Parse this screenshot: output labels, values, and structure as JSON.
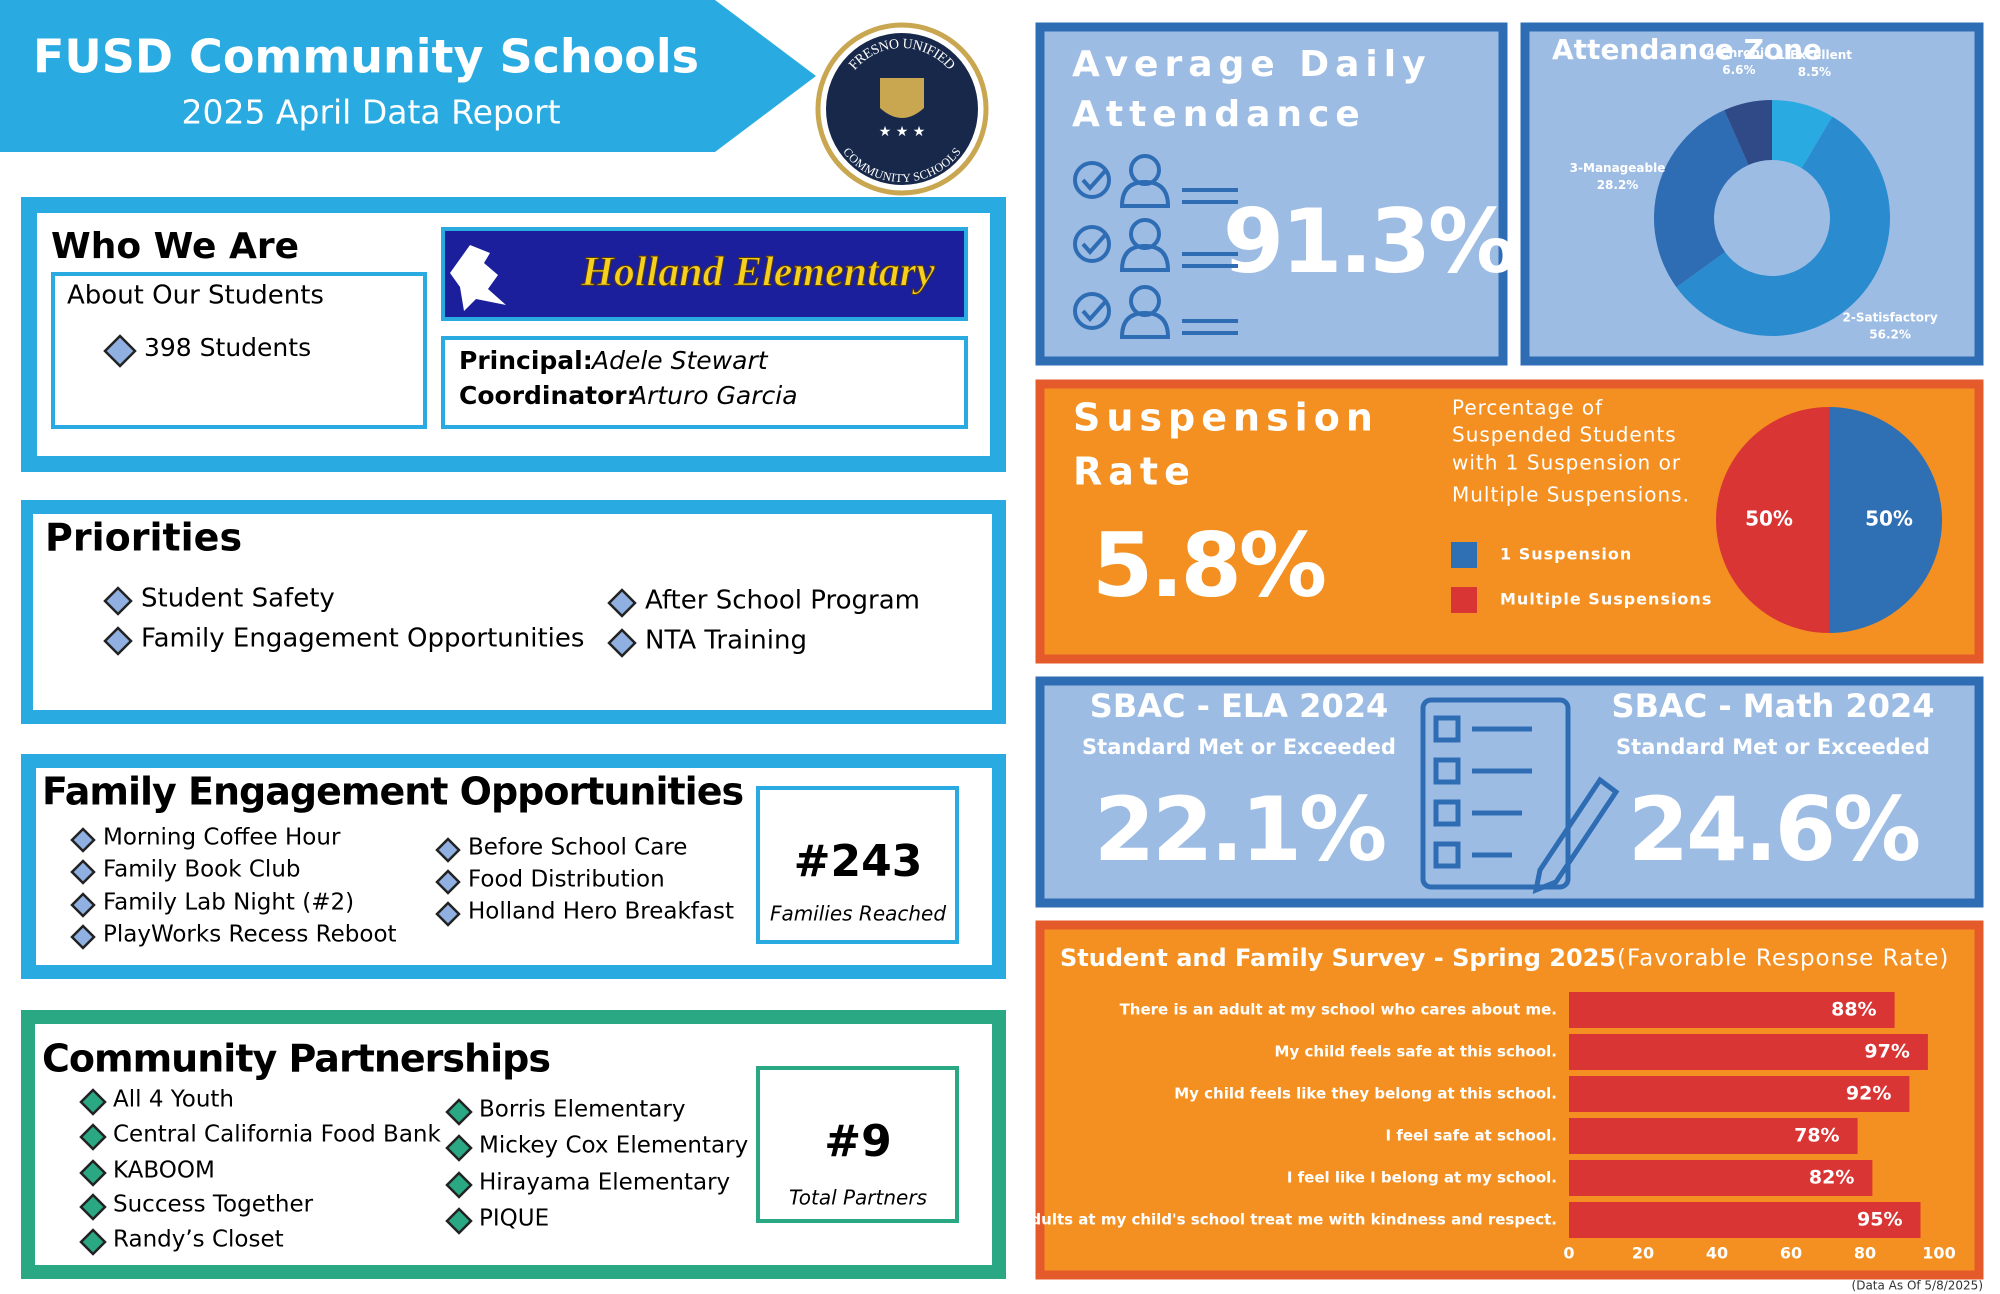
{
  "header": {
    "title": "FUSD Community Schools",
    "subtitle": "2025 April Data Report",
    "logo_top": "FRESNO UNIFIED",
    "logo_bottom": "COMMUNITY SCHOOLS"
  },
  "who": {
    "title": "Who We Are",
    "about_title": "About Our Students",
    "students": "398 Students",
    "school": "Holland Elementary",
    "principal_label": "Principal:",
    "principal": "Adele Stewart",
    "coordinator_label": "Coordinator:",
    "coordinator": "Arturo Garcia"
  },
  "priorities": {
    "title": "Priorities",
    "items": [
      "Student Safety",
      "Family Engagement Opportunities",
      "After School Program",
      "NTA Training"
    ]
  },
  "family": {
    "title": "Family Engagement Opportunities",
    "items": [
      "Morning Coffee Hour",
      "Family Book Club",
      "Family Lab Night (#2)",
      "PlayWorks Recess Reboot",
      "Before School Care",
      "Food Distribution",
      "Holland Hero Breakfast"
    ],
    "count": "#243",
    "count_label": "Families Reached"
  },
  "partners": {
    "title": "Community Partnerships",
    "items": [
      "All 4 Youth",
      "Central California Food Bank",
      "KABOOM",
      "Success Together",
      "Randy’s Closet",
      "Borris Elementary",
      "Mickey Cox Elementary",
      "Hirayama Elementary",
      "PIQUE"
    ],
    "count": "#9",
    "count_label": "Total Partners"
  },
  "attendance": {
    "title_lines": [
      "Average Daily",
      "Attendance"
    ],
    "value": "91.3%"
  },
  "suspension": {
    "title_lines": [
      "Suspension",
      "Rate"
    ],
    "value": "5.8%",
    "description_lines": [
      "Percentage of",
      "Suspended Students",
      "with 1 Suspension or",
      "Multiple Suspensions."
    ]
  },
  "sbac": {
    "ela_title": "SBAC - ELA 2024",
    "ela_subtitle": "Standard Met or Exceeded",
    "ela_value": "22.1%",
    "math_title": "SBAC - Math 2024",
    "math_subtitle": "Standard Met or Exceeded",
    "math_value": "24.6%"
  },
  "footnote": "(Data As Of 5/8/2025)",
  "chart_data": [
    {
      "type": "donut",
      "title": "Attendance Zone",
      "categories": [
        "1-Excellent",
        "2-Satisfactory",
        "3-Manageable",
        "4-Chronic"
      ],
      "values": [
        8.5,
        56.2,
        28.2,
        6.6
      ],
      "value_labels": [
        "8.5%",
        "56.2%",
        "28.2%",
        "6.6%"
      ],
      "colors": [
        "#29abe2",
        "#2a8ccf",
        "#2e6db4",
        "#2f4a86"
      ]
    },
    {
      "type": "pie",
      "categories": [
        "1 Suspension",
        "Multiple Suspensions"
      ],
      "values": [
        50,
        50
      ],
      "value_labels": [
        "50%",
        "50%"
      ],
      "colors": [
        "#2f6fb4",
        "#d93535"
      ]
    },
    {
      "type": "bar",
      "orientation": "horizontal",
      "title": "Student and Family Survey - Spring 2025",
      "subtitle": "(Favorable Response Rate)",
      "categories": [
        "There is an adult at my school who cares about me.",
        "My child feels safe at this school.",
        "My child feels like they belong at this school.",
        "I feel safe at school.",
        "I feel like I belong at my school.",
        "Adults at my child's school treat me with kindness and respect."
      ],
      "values": [
        88,
        97,
        92,
        78,
        82,
        95
      ],
      "value_labels": [
        "88%",
        "97%",
        "92%",
        "78%",
        "82%",
        "95%"
      ],
      "color": "#d93535",
      "xlim": [
        0,
        100
      ],
      "xticks": [
        0,
        20,
        40,
        60,
        80,
        100
      ]
    }
  ]
}
